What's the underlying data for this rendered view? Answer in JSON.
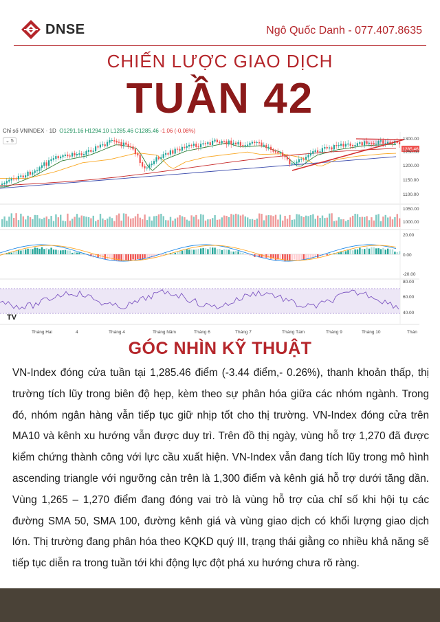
{
  "header": {
    "logo_text": "DNSE",
    "author": "Ngô Quốc Danh - 077.407.8635"
  },
  "subtitle": "CHIẾN LƯỢC GIAO DỊCH",
  "title": "TUẦN 42",
  "chart": {
    "symbol": "Chỉ số VNINDEX · 1D",
    "ohlc_open": "O1291.16",
    "ohlc_high": "H1294.10",
    "ohlc_low": "L1285.46",
    "ohlc_close": "C1285.46",
    "ohlc_change": "-1.06 (-0.08%)",
    "indicator_count": "5",
    "last_price_tag": "1285.46",
    "price_axis": [
      "1300.00",
      "1250.00",
      "1200.00",
      "1150.00",
      "1100.00",
      "1050.00",
      "1000.00"
    ],
    "macd_axis": [
      "20.00",
      "0.00",
      "-20.00"
    ],
    "rsi_axis": [
      "80.00",
      "60.00",
      "40.00"
    ],
    "x_labels": [
      "Tháng Hai",
      "4",
      "Tháng 4",
      "Tháng Năm",
      "Tháng 6",
      "Tháng 7",
      "Tháng Tám",
      "Tháng 9",
      "Tháng 10",
      "Thán"
    ],
    "colors": {
      "up": "#26a69a",
      "down": "#ef5350",
      "trendline": "#d32f2f",
      "ma_short": "#2e7d32",
      "ma_mid": "#f9a825",
      "ma_long": "#c62828",
      "ma_200": "#3949ab",
      "rsi": "#7e57c2"
    }
  },
  "section_title": "GÓC NHÌN KỸ THUẬT",
  "paragraph": "VN-Index đóng cửa tuần tại 1,285.46 điểm (-3.44 điểm,- 0.26%), thanh khoản thấp, thị trường tích lũy trong biên độ hẹp, kèm theo sự phân hóa giữa các nhóm ngành. Trong đó, nhóm ngân hàng vẫn tiếp tục giữ nhịp tốt cho thị trường. VN-Index đóng cửa trên MA10 và kênh xu hướng vẫn được duy trì. Trên đồ thị ngày, vùng hỗ trợ 1,270 đã được kiểm chứng thành công với lực cầu xuất hiện. VN-Index vẫn đang tích lũy trong mô hình ascending triangle với ngưỡng cản trên là 1,300 điểm và kênh giá hỗ trợ dưới tăng dần. Vùng 1,265 – 1,270 điểm đang đóng vai trò là vùng hỗ trợ của chỉ số khi hội tụ các đường SMA 50, SMA 100, đường kênh giá và vùng giao dịch có khối lượng giao dịch lớn. Thị trường đang phân hóa theo KQKD quý III, trạng thái giằng co nhiều khả năng sẽ tiếp tục diễn ra trong tuần tới khi động lực đột phá xu hướng chưa rõ ràng."
}
